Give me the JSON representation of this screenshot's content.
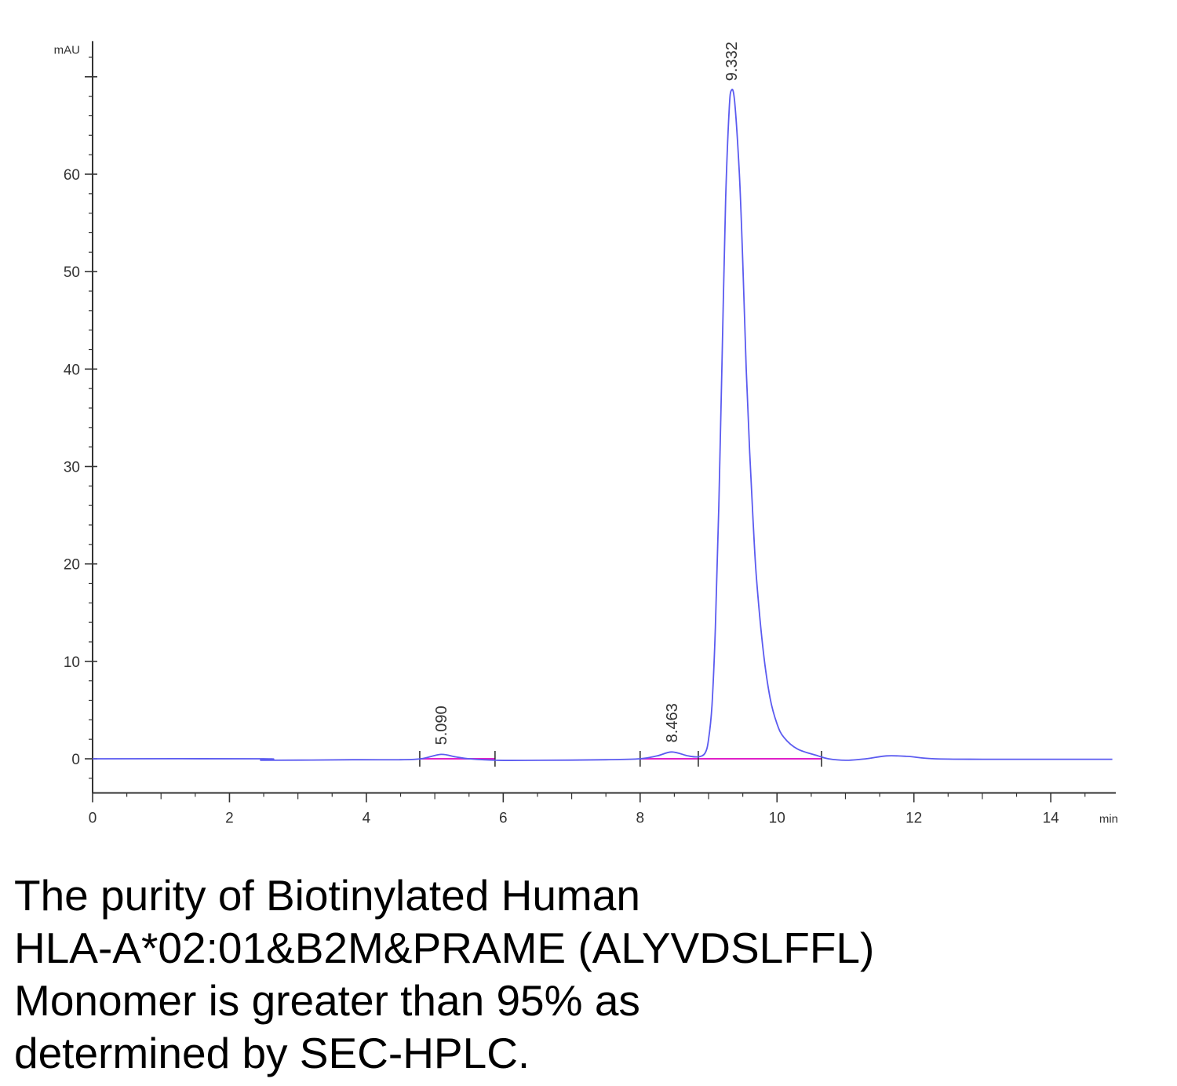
{
  "chart_data": {
    "type": "line",
    "title": "",
    "xlabel": "",
    "ylabel": "",
    "x_unit": "min",
    "y_unit": "mAU",
    "xlim": [
      0,
      14.95
    ],
    "ylim": [
      -3.5,
      73.5
    ],
    "x_ticks": [
      0,
      2,
      4,
      6,
      8,
      10,
      12,
      14
    ],
    "y_ticks": [
      0,
      10,
      20,
      30,
      40,
      50,
      60
    ],
    "grid": false,
    "legend": "none",
    "colors": {
      "trace": "#5b5bf0",
      "baseline": "#e020c8",
      "axis": "#333333"
    },
    "peaks": [
      {
        "label": "5.090",
        "rt": 5.09,
        "height": 0.45
      },
      {
        "label": "8.463",
        "rt": 8.463,
        "height": 0.7
      },
      {
        "label": "9.332",
        "rt": 9.332,
        "height": 68.6
      }
    ],
    "series": [
      {
        "x": [
          0,
          2.5,
          2.5,
          3.8,
          4.5,
          4.8,
          5.09,
          5.3,
          5.5,
          5.9,
          6.5,
          7.5,
          8.0,
          8.25,
          8.463,
          8.7,
          8.85,
          8.95,
          9.0,
          9.05,
          9.1,
          9.15,
          9.2,
          9.25,
          9.3,
          9.332,
          9.38,
          9.45,
          9.5,
          9.55,
          9.6,
          9.65,
          9.7,
          9.8,
          9.9,
          10.0,
          10.1,
          10.3,
          10.6,
          10.75,
          11.0,
          11.3,
          11.6,
          11.9,
          12.3,
          13.0,
          14.0,
          14.9
        ],
        "y": [
          0,
          0,
          -0.15,
          -0.1,
          -0.1,
          0,
          0.45,
          0.2,
          0,
          -0.15,
          -0.15,
          -0.1,
          0,
          0.3,
          0.7,
          0.3,
          0.2,
          0.6,
          2.0,
          5.5,
          13.5,
          26.0,
          42.0,
          57.5,
          66.5,
          68.6,
          67.5,
          60.0,
          51.0,
          40.0,
          31.5,
          24.5,
          18.5,
          11.0,
          6.2,
          3.6,
          2.2,
          1.0,
          0.3,
          0,
          -0.15,
          0.0,
          0.3,
          0.25,
          0.0,
          -0.05,
          -0.05,
          -0.05
        ]
      }
    ],
    "integration_baselines": [
      {
        "x": [
          4.78,
          5.88
        ],
        "y": [
          0.0,
          0.0
        ]
      },
      {
        "x": [
          8.0,
          10.65
        ],
        "y": [
          0.0,
          0.0
        ]
      }
    ],
    "integration_marks": [
      4.78,
      5.88,
      8.0,
      8.85,
      10.65
    ]
  },
  "caption": {
    "lines": [
      "The purity of Biotinylated Human",
      "HLA-A*02:01&B2M&PRAME (ALYVDSLFFL)",
      "Monomer is greater than 95% as",
      "determined by SEC-HPLC."
    ]
  }
}
